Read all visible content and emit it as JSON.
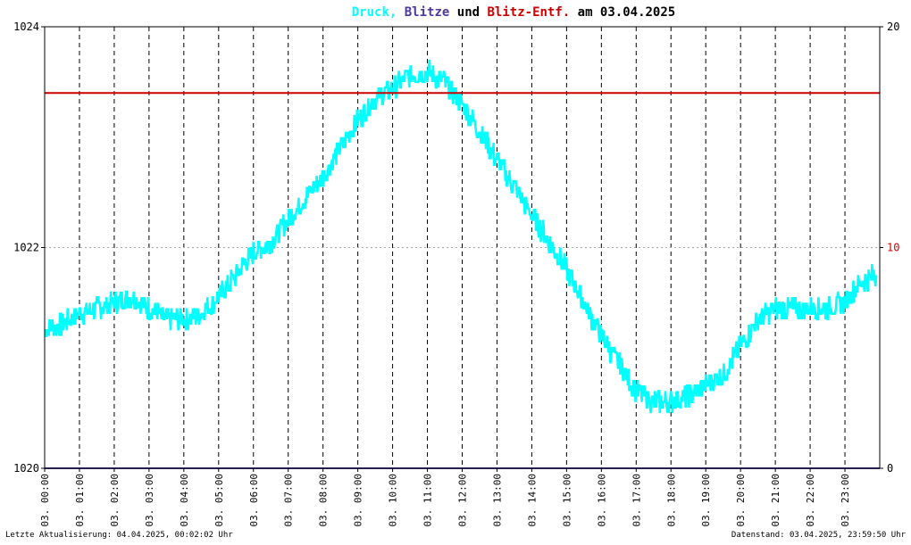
{
  "title": {
    "parts": [
      {
        "text": "Druck,",
        "color": "#00ffff"
      },
      {
        "text": " Blitze",
        "color": "#4b3aa0"
      },
      {
        "text": " und ",
        "color": "#000000"
      },
      {
        "text": "Blitz-Entf.",
        "color": "#cc0000"
      },
      {
        "text": " am 03.04.2025",
        "color": "#000000"
      }
    ]
  },
  "footer": {
    "left": "Letzte Aktualisierung: 04.04.2025, 00:02:02 Uhr",
    "right": "Datenstand: 03.04.2025, 23:59:50 Uhr"
  },
  "chart_data": {
    "type": "line",
    "left_axis": {
      "min": 1020,
      "max": 1024,
      "ticks": [
        "1024",
        "1022",
        "1020"
      ],
      "values": [
        1024,
        1022,
        1020
      ]
    },
    "right_axis": {
      "min": 0,
      "max": 20,
      "ticks": [
        "20",
        "10",
        "0"
      ],
      "values": [
        20,
        10,
        0
      ],
      "highlight_color": "#cc0000"
    },
    "x_ticks": [
      "03. 00:00",
      "03. 01:00",
      "03. 02:00",
      "03. 03:00",
      "03. 04:00",
      "03. 05:00",
      "03. 06:00",
      "03. 07:00",
      "03. 08:00",
      "03. 09:00",
      "03. 10:00",
      "03. 11:00",
      "03. 12:00",
      "03. 13:00",
      "03. 14:00",
      "03. 15:00",
      "03. 16:00",
      "03. 17:00",
      "03. 18:00",
      "03. 19:00",
      "03. 20:00",
      "03. 21:00",
      "03. 22:00",
      "03. 23:00"
    ],
    "series": [
      {
        "color": "#00ffff",
        "axis": "left",
        "x_hours": [
          0,
          0.5,
          1,
          1.5,
          2,
          2.5,
          3,
          3.5,
          4,
          4.5,
          5,
          5.5,
          6,
          6.5,
          7,
          7.5,
          8,
          8.5,
          9,
          9.5,
          10,
          10.5,
          11,
          11.5,
          12,
          12.5,
          13,
          13.5,
          14,
          14.5,
          15,
          15.5,
          16,
          16.5,
          17,
          17.5,
          18,
          18.5,
          19,
          19.5,
          20,
          20.5,
          21,
          21.5,
          22,
          22.5,
          23,
          23.5,
          23.9
        ],
        "y": [
          1021.25,
          1021.3,
          1021.4,
          1021.45,
          1021.5,
          1021.55,
          1021.45,
          1021.35,
          1021.35,
          1021.4,
          1021.55,
          1021.75,
          1021.95,
          1022.05,
          1022.25,
          1022.45,
          1022.65,
          1022.9,
          1023.15,
          1023.35,
          1023.45,
          1023.55,
          1023.6,
          1023.5,
          1023.3,
          1023.05,
          1022.8,
          1022.55,
          1022.3,
          1022.05,
          1021.8,
          1021.5,
          1021.2,
          1020.95,
          1020.7,
          1020.6,
          1020.6,
          1020.65,
          1020.75,
          1020.85,
          1021.1,
          1021.35,
          1021.45,
          1021.45,
          1021.45,
          1021.45,
          1021.5,
          1021.7,
          1021.75
        ],
        "noise": 0.1
      },
      {
        "color": "#4b3aa0",
        "axis": "right",
        "x_hours": [
          0,
          24
        ],
        "y": [
          0,
          0
        ]
      },
      {
        "color": "#cc0000",
        "axis": "right",
        "x_hours": [
          0,
          24
        ],
        "y": [
          17,
          17
        ]
      }
    ],
    "grid": {
      "vertical": "dashed",
      "horizontal": "dotted"
    }
  }
}
